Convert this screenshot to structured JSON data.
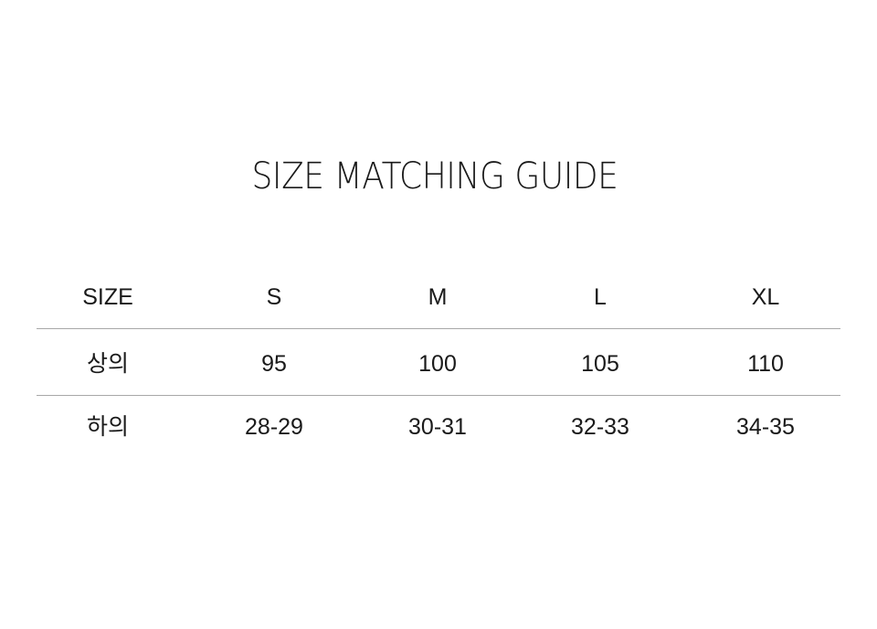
{
  "title": "SIZE MATCHING GUIDE",
  "table": {
    "header": [
      "SIZE",
      "S",
      "M",
      "L",
      "XL"
    ],
    "rows": [
      [
        "상의",
        "95",
        "100",
        "105",
        "110"
      ],
      [
        "하의",
        "28-29",
        "30-31",
        "32-33",
        "34-35"
      ]
    ]
  }
}
